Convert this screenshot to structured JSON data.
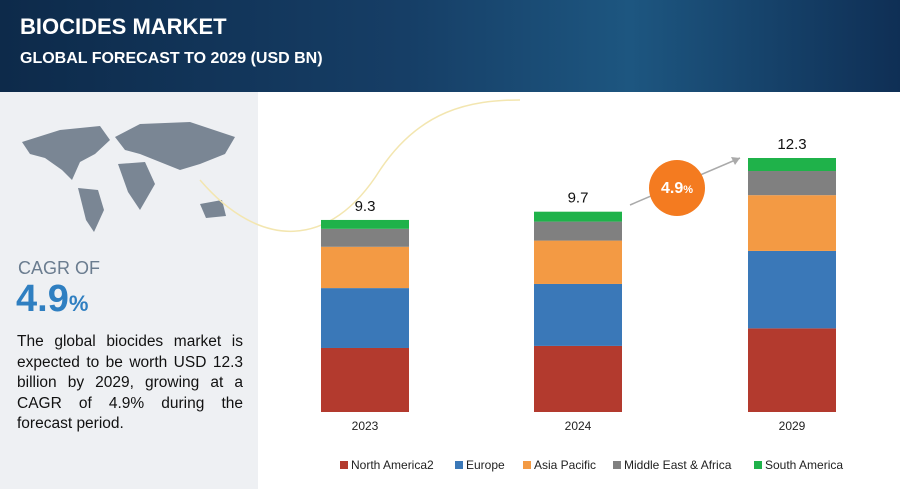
{
  "header": {
    "title": "BIOCIDES MARKET",
    "subtitle": "GLOBAL FORECAST TO 2029 (USD BN)"
  },
  "summary": {
    "cagr_caption": "CAGR OF",
    "cagr_value": "4.9",
    "cagr_unit": "%",
    "text": "The global biocides market is expected to be worth USD 12.3 billion by 2029, growing at a CAGR of 4.9% during the forecast period."
  },
  "chart_data": {
    "type": "stacked_bar",
    "categories": [
      "2023",
      "2024",
      "2029"
    ],
    "totals": [
      9.3,
      9.7,
      12.3
    ],
    "series": [
      {
        "name": "North America2",
        "color": "#b33a2e",
        "values": [
          3.1,
          3.2,
          4.05
        ]
      },
      {
        "name": "Europe",
        "color": "#3a78b8",
        "values": [
          2.9,
          3.0,
          3.75
        ]
      },
      {
        "name": "Asia Pacific",
        "color": "#f39a44",
        "values": [
          2.0,
          2.1,
          2.7
        ]
      },
      {
        "name": "Middle East & Africa",
        "color": "#808080",
        "values": [
          0.87,
          0.92,
          1.17
        ]
      },
      {
        "name": "South America",
        "color": "#1fb24a",
        "values": [
          0.43,
          0.48,
          0.63
        ]
      }
    ]
  }
}
